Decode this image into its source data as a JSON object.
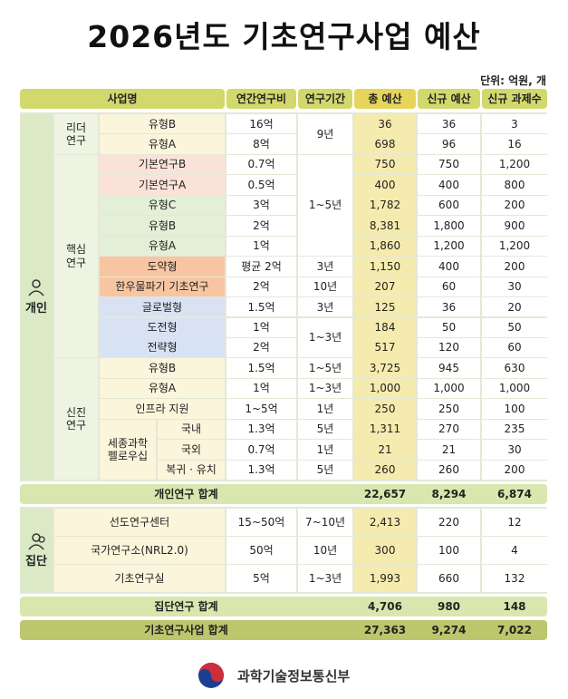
{
  "title": "2026년도 기초연구사업 예산",
  "unit": "단위: 억원, 개",
  "header": [
    "사업명",
    "연간연구비",
    "연구기간",
    "총 예산",
    "신규 예산",
    "신규 과제수"
  ],
  "individual": {
    "label": "개인",
    "subgroups": [
      {
        "label": "리더\n연구",
        "rows": [
          {
            "name": "유형B",
            "cost": "16억",
            "period": "9년",
            "total": "36",
            "new_budget": "36",
            "new_count": "3",
            "color": "#fbf5dc"
          },
          {
            "name": "유형A",
            "cost": "8억",
            "period": null,
            "total": "698",
            "new_budget": "96",
            "new_count": "16",
            "color": "#fbf5dc"
          }
        ]
      },
      {
        "label": "핵심\n연구",
        "rows": [
          {
            "name": "기본연구B",
            "cost": "0.7억",
            "period": "1~5년",
            "total": "750",
            "new_budget": "750",
            "new_count": "1,200",
            "color": "#fbe2d8"
          },
          {
            "name": "기본연구A",
            "cost": "0.5억",
            "period": null,
            "total": "400",
            "new_budget": "400",
            "new_count": "800",
            "color": "#fbe2d8"
          },
          {
            "name": "유형C",
            "cost": "3억",
            "period": null,
            "total": "1,782",
            "new_budget": "600",
            "new_count": "200",
            "color": "#e3efd6"
          },
          {
            "name": "유형B",
            "cost": "2억",
            "period": null,
            "total": "8,381",
            "new_budget": "1,800",
            "new_count": "900",
            "color": "#e3efd6"
          },
          {
            "name": "유형A",
            "cost": "1억",
            "period": null,
            "total": "1,860",
            "new_budget": "1,200",
            "new_count": "1,200",
            "color": "#e3efd6"
          },
          {
            "name": "도약형",
            "cost": "평균 2억",
            "period": "3년",
            "total": "1,150",
            "new_budget": "400",
            "new_count": "200",
            "color": "#f8c5a2"
          },
          {
            "name": "한우물파기 기초연구",
            "cost": "2억",
            "period": "10년",
            "total": "207",
            "new_budget": "60",
            "new_count": "30",
            "color": "#f8c5a2"
          },
          {
            "name": "글로벌형",
            "cost": "1.5억",
            "period": "3년",
            "total": "125",
            "new_budget": "36",
            "new_count": "20",
            "color": "#d8e2f3"
          },
          {
            "name": "도전형",
            "cost": "1억",
            "period": "1~3년",
            "total": "184",
            "new_budget": "50",
            "new_count": "50",
            "color": "#d8e2f3"
          },
          {
            "name": "전략형",
            "cost": "2억",
            "period": null,
            "total": "517",
            "new_budget": "120",
            "new_count": "60",
            "color": "#d8e2f3"
          }
        ]
      },
      {
        "label": "신진\n연구",
        "rows": [
          {
            "name": "유형B",
            "cost": "1.5억",
            "period": "1~5년",
            "total": "3,725",
            "new_budget": "945",
            "new_count": "630",
            "color": "#fbf5dc"
          },
          {
            "name": "유형A",
            "cost": "1억",
            "period": "1~3년",
            "total": "1,000",
            "new_budget": "1,000",
            "new_count": "1,000",
            "color": "#fbf5dc"
          },
          {
            "name": "인프라 지원",
            "cost": "1~5억",
            "period": "1년",
            "total": "250",
            "new_budget": "250",
            "new_count": "100",
            "color": "#fbf5dc"
          }
        ],
        "nested": {
          "label": "세종과학\n펠로우십",
          "rows": [
            {
              "name": "국내",
              "cost": "1.3억",
              "period": "5년",
              "total": "1,311",
              "new_budget": "270",
              "new_count": "235",
              "color": "#fbf5dc"
            },
            {
              "name": "국외",
              "cost": "0.7억",
              "period": "1년",
              "total": "21",
              "new_budget": "21",
              "new_count": "30",
              "color": "#fbf5dc"
            },
            {
              "name": "복귀 · 유치",
              "cost": "1.3억",
              "period": "5년",
              "total": "260",
              "new_budget": "260",
              "new_count": "200",
              "color": "#fbf5dc"
            }
          ]
        }
      }
    ]
  },
  "collective": {
    "label": "집단",
    "rows": [
      {
        "name": "선도연구센터",
        "cost": "15~50억",
        "period": "7~10년",
        "total": "2,413",
        "new_budget": "220",
        "new_count": "12",
        "color": "#fbf5dc"
      },
      {
        "name": "국가연구소(NRL2.0)",
        "cost": "50억",
        "period": "10년",
        "total": "300",
        "new_budget": "100",
        "new_count": "4",
        "color": "#fbf5dc"
      },
      {
        "name": "기초연구실",
        "cost": "5억",
        "period": "1~3년",
        "total": "1,993",
        "new_budget": "660",
        "new_count": "132",
        "color": "#fbf5dc"
      }
    ]
  },
  "totals": [
    {
      "label": "개인연구 합계",
      "total": "22,657",
      "new_budget": "8,294",
      "new_count": "6,874",
      "color": "#d9e6ae"
    },
    {
      "label": "집단연구 합계",
      "total": "4,706",
      "new_budget": "980",
      "new_count": "148",
      "color": "#d9e6ae"
    },
    {
      "label": "기초연구사업 합계",
      "total": "27,363",
      "new_budget": "9,274",
      "new_count": "7,022",
      "color": "#bcc66c"
    }
  ],
  "footer": "과학기술정보통신부"
}
